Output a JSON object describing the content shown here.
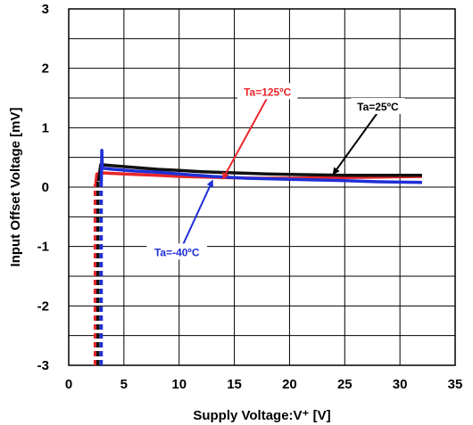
{
  "chart_data": {
    "type": "line",
    "title": "",
    "xlabel": "Supply Voltage:V⁺ [V]",
    "ylabel": "Input Offset Voltage [mV]",
    "xlim": [
      0,
      35
    ],
    "ylim": [
      -3,
      3
    ],
    "x_ticks": [
      0,
      5,
      10,
      15,
      20,
      25,
      30,
      35
    ],
    "y_ticks": [
      -3,
      -2,
      -1,
      0,
      1,
      2,
      3
    ],
    "grid": true,
    "legend": "none",
    "series": [
      {
        "name": "Ta=125ºC",
        "color": "#e8262a",
        "dashed_x": 2.4,
        "points": [
          [
            2.45,
            0.05
          ],
          [
            2.55,
            0.22
          ],
          [
            3,
            0.24
          ],
          [
            5,
            0.22
          ],
          [
            8,
            0.2
          ],
          [
            10,
            0.18
          ],
          [
            14,
            0.16
          ],
          [
            17,
            0.15
          ],
          [
            20,
            0.15
          ],
          [
            25,
            0.16
          ],
          [
            28,
            0.17
          ],
          [
            32,
            0.18
          ]
        ]
      },
      {
        "name": "Ta=25ºC",
        "color": "#111111",
        "dashed_x": 2.65,
        "points": [
          [
            2.7,
            0.1
          ],
          [
            2.9,
            0.38
          ],
          [
            4,
            0.36
          ],
          [
            6,
            0.33
          ],
          [
            8,
            0.3
          ],
          [
            10,
            0.28
          ],
          [
            12,
            0.26
          ],
          [
            15,
            0.24
          ],
          [
            18,
            0.22
          ],
          [
            21,
            0.21
          ],
          [
            25,
            0.2
          ],
          [
            28,
            0.2
          ],
          [
            32,
            0.2
          ]
        ]
      },
      {
        "name": "Ta=-40ºC",
        "color": "#1f2fd6",
        "dashed_x": 2.95,
        "points": [
          [
            2.95,
            0.05
          ],
          [
            3.0,
            0.62
          ],
          [
            3.05,
            0.32
          ],
          [
            4,
            0.3
          ],
          [
            6,
            0.27
          ],
          [
            8,
            0.25
          ],
          [
            10,
            0.22
          ],
          [
            13,
            0.18
          ],
          [
            16,
            0.15
          ],
          [
            20,
            0.13
          ],
          [
            25,
            0.11
          ],
          [
            28,
            0.09
          ],
          [
            32,
            0.08
          ]
        ]
      }
    ],
    "annotations": [
      {
        "text": "Ta=125ºC",
        "color": "#e8262a",
        "pos": [
          18,
          1.6
        ],
        "arrow_to": [
          14,
          0.15
        ]
      },
      {
        "text": "Ta=25ºC",
        "color": "#000000",
        "pos": [
          28,
          1.35
        ],
        "arrow_to": [
          24,
          0.23
        ]
      },
      {
        "text": "Ta=-40ºC",
        "color": "#1f2fd6",
        "pos": [
          9.8,
          -1.1
        ],
        "arrow_to": [
          13,
          0.1
        ]
      }
    ]
  }
}
